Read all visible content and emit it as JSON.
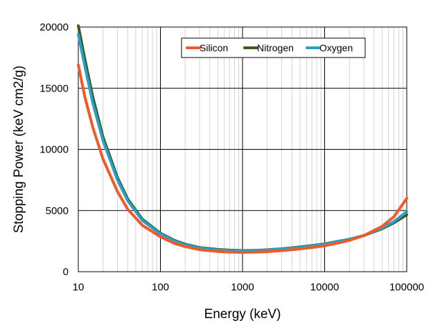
{
  "chart_data": {
    "type": "line",
    "title": "",
    "xlabel": "Energy (keV)",
    "ylabel": "Stopping Power (keV cm2/g)",
    "xscale": "log",
    "xlim": [
      10,
      100000
    ],
    "ylim": [
      0,
      20000
    ],
    "xticks": [
      10,
      100,
      1000,
      10000,
      100000
    ],
    "xtick_labels": [
      "10",
      "100",
      "1000",
      "10000",
      "100000"
    ],
    "yticks": [
      0,
      5000,
      10000,
      15000,
      20000
    ],
    "ytick_labels": [
      "0",
      "5000",
      "10000",
      "15000",
      "20000"
    ],
    "grid": true,
    "legend": "top-center",
    "series": [
      {
        "name": "Silicon",
        "color": "#f05a28",
        "x": [
          10,
          12,
          15,
          20,
          30,
          40,
          60,
          100,
          150,
          200,
          300,
          500,
          700,
          1000,
          1500,
          2000,
          3000,
          5000,
          7000,
          10000,
          15000,
          20000,
          30000,
          50000,
          70000,
          100000
        ],
        "y": [
          16900,
          14300,
          11800,
          9200,
          6550,
          5100,
          3800,
          2850,
          2300,
          2050,
          1800,
          1650,
          1600,
          1580,
          1600,
          1640,
          1720,
          1860,
          1980,
          2120,
          2360,
          2560,
          2950,
          3700,
          4500,
          6000
        ]
      },
      {
        "name": "Nitrogen",
        "color": "#3d5a1e",
        "x": [
          10,
          12,
          15,
          20,
          30,
          40,
          60,
          100,
          150,
          200,
          300,
          500,
          700,
          1000,
          1500,
          2000,
          3000,
          5000,
          7000,
          10000,
          15000,
          20000,
          30000,
          50000,
          70000,
          100000
        ],
        "y": [
          20100,
          17400,
          14300,
          11000,
          7700,
          5950,
          4300,
          3150,
          2550,
          2250,
          1980,
          1820,
          1760,
          1730,
          1750,
          1790,
          1870,
          2020,
          2140,
          2280,
          2500,
          2660,
          2950,
          3500,
          4000,
          4650
        ]
      },
      {
        "name": "Oxygen",
        "color": "#2aa0c8",
        "x": [
          10,
          12,
          15,
          20,
          30,
          40,
          60,
          100,
          150,
          200,
          300,
          500,
          700,
          1000,
          1500,
          2000,
          3000,
          5000,
          7000,
          10000,
          15000,
          20000,
          30000,
          50000,
          70000,
          100000
        ],
        "y": [
          19400,
          16800,
          13800,
          10700,
          7500,
          5800,
          4200,
          3080,
          2500,
          2200,
          1940,
          1780,
          1720,
          1700,
          1720,
          1760,
          1840,
          1990,
          2110,
          2250,
          2480,
          2650,
          2960,
          3550,
          4100,
          4900
        ]
      }
    ]
  }
}
